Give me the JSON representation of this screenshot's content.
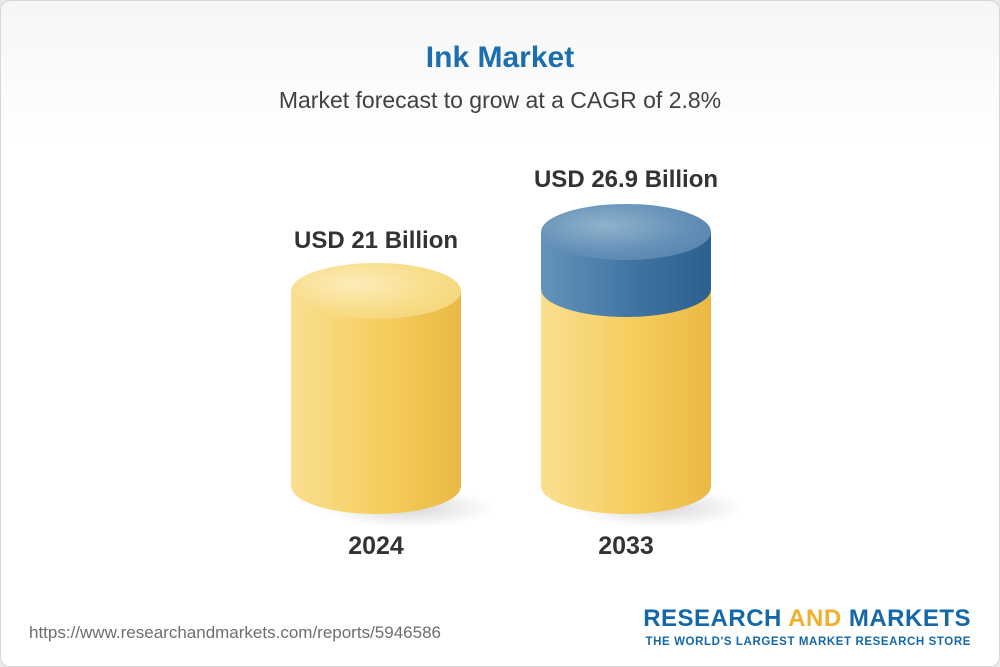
{
  "header": {
    "title": "Ink Market",
    "subtitle": "Market forecast to grow at a CAGR of 2.8%"
  },
  "footer": {
    "url": "https://www.researchandmarkets.com/reports/5946586",
    "logo": {
      "word1": "RESEARCH",
      "word2": "AND",
      "word3": "MARKETS",
      "tagline": "THE WORLD'S LARGEST MARKET RESEARCH STORE"
    }
  },
  "chart_data": {
    "type": "bar",
    "subtype": "3d-cylinder",
    "title": "Ink Market",
    "subtitle": "Market forecast to grow at a CAGR of 2.8%",
    "categories": [
      "2024",
      "2033"
    ],
    "values": [
      21,
      26.9
    ],
    "value_labels": [
      "USD 21 Billion",
      "USD 26.9 Billion"
    ],
    "unit": "USD Billion",
    "cagr_percent": 2.8,
    "legend": "none",
    "grid": false,
    "colors": {
      "base_segment": "#F6CD5E",
      "growth_segment": "#3F74A2",
      "title_blue": "#1B6FAE",
      "label_text": "#333333"
    }
  }
}
